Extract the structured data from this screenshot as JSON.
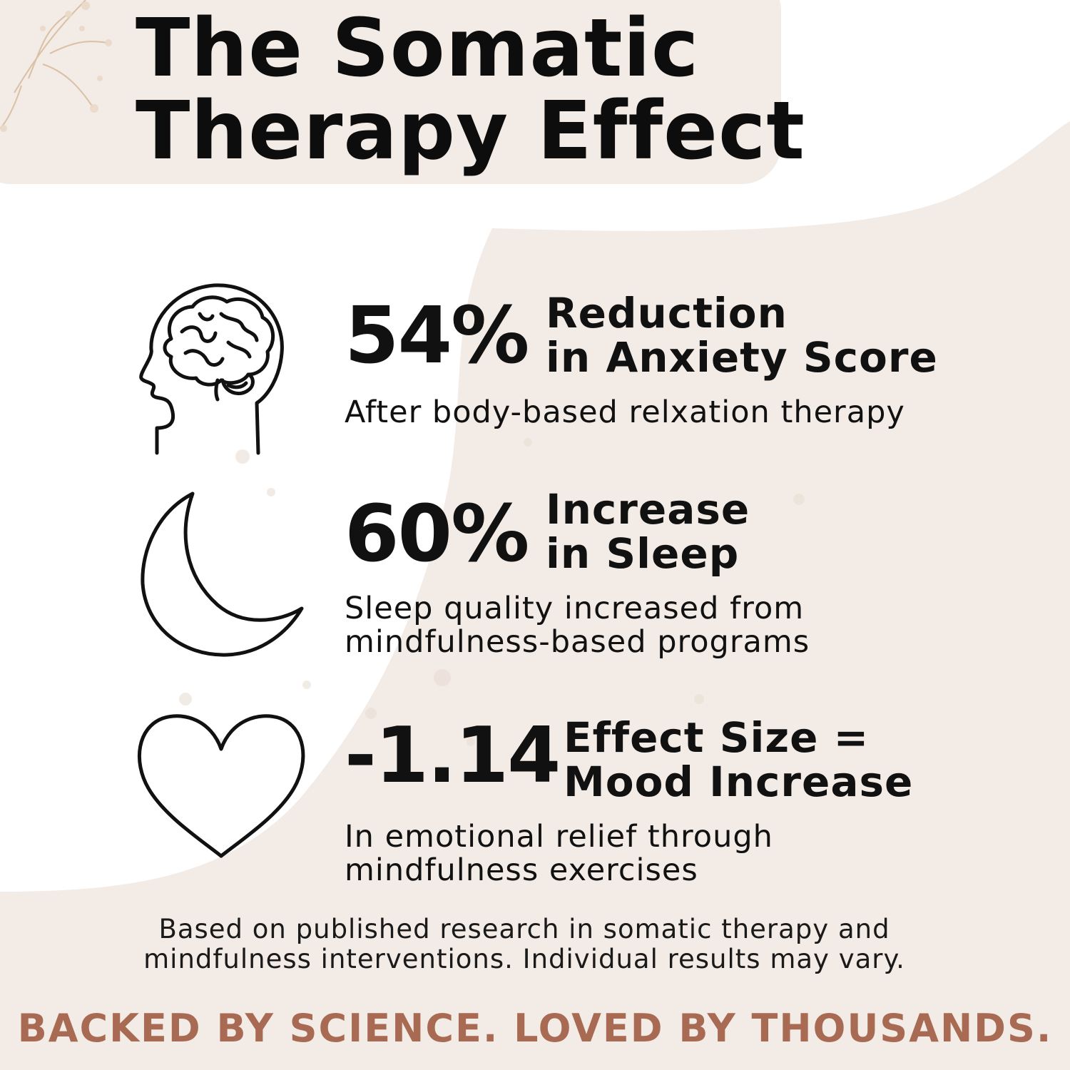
{
  "colors": {
    "background": "#ffffff",
    "blob": "#f3ebe6",
    "text": "#111111",
    "tagline": "#a86a52"
  },
  "title": {
    "line1": "The Somatic",
    "line2": "Therapy Effect"
  },
  "stats": [
    {
      "icon": "brain-head-icon",
      "value": "54%",
      "label_line1": "Reduction",
      "label_line2": "in Anxiety Score",
      "desc_line1": "After body-based relxation therapy",
      "desc_line2": ""
    },
    {
      "icon": "crescent-moon-icon",
      "value": "60%",
      "label_line1": "Increase",
      "label_line2": "in Sleep",
      "desc_line1": "Sleep quality increased from",
      "desc_line2": "mindfulness-based programs"
    },
    {
      "icon": "heart-icon",
      "value": "-1.14",
      "label_line1": "Effect Size =",
      "label_line2": "Mood Increase",
      "desc_line1": "In emotional relief through",
      "desc_line2": "mindfulness exercises"
    }
  ],
  "footnote": {
    "line1": "Based on published research in somatic therapy and",
    "line2": "mindfulness interventions. Individual results may vary."
  },
  "tagline": "BACKED BY SCIENCE. LOVED BY THOUSANDS."
}
